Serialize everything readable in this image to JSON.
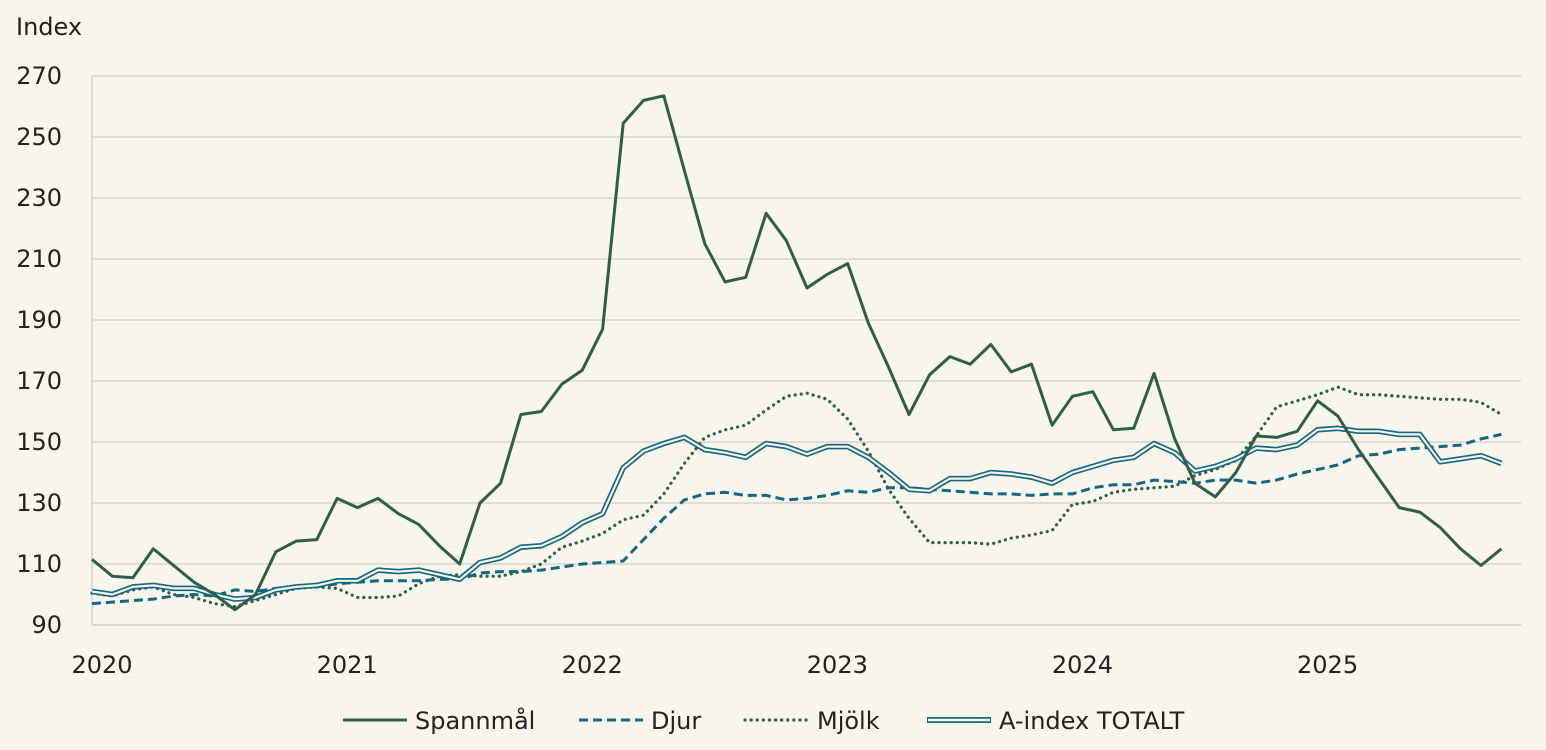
{
  "chart_data": {
    "type": "line",
    "ylabel": "Index",
    "ylim": [
      90,
      270
    ],
    "yticks": [
      90,
      110,
      130,
      150,
      170,
      190,
      210,
      230,
      250,
      270
    ],
    "xlim": [
      2020,
      2025.83
    ],
    "xticks": [
      2020,
      2021,
      2022,
      2023,
      2024,
      2025
    ],
    "xtick_labels": [
      "2020",
      "2021",
      "2022",
      "2023",
      "2024",
      "2025"
    ],
    "grid": true,
    "legend_position": "bottom",
    "x": [
      2020.0,
      2020.083,
      2020.167,
      2020.25,
      2020.333,
      2020.417,
      2020.5,
      2020.583,
      2020.667,
      2020.75,
      2020.833,
      2020.917,
      2021.0,
      2021.083,
      2021.167,
      2021.25,
      2021.333,
      2021.417,
      2021.5,
      2021.583,
      2021.667,
      2021.75,
      2021.833,
      2021.917,
      2022.0,
      2022.083,
      2022.167,
      2022.25,
      2022.333,
      2022.417,
      2022.5,
      2022.583,
      2022.667,
      2022.75,
      2022.833,
      2022.917,
      2023.0,
      2023.083,
      2023.167,
      2023.25,
      2023.333,
      2023.417,
      2023.5,
      2023.583,
      2023.667,
      2023.75,
      2023.833,
      2023.917,
      2024.0,
      2024.083,
      2024.167,
      2024.25,
      2024.333,
      2024.417,
      2024.5,
      2024.583,
      2024.667,
      2024.75,
      2024.833,
      2024.917,
      2025.0,
      2025.083,
      2025.167,
      2025.25,
      2025.333,
      2025.417,
      2025.5,
      2025.583,
      2025.667,
      2025.75
    ],
    "series": [
      {
        "name": "Spannmål",
        "color": "#2e5e4a",
        "style": "solid",
        "values": [
          111.5,
          106,
          105.5,
          115,
          109.5,
          104,
          100,
          95,
          100,
          114,
          117.5,
          118,
          131.5,
          128.5,
          131.5,
          126.5,
          123,
          116,
          110,
          130,
          136.5,
          159,
          160,
          169,
          173.5,
          187,
          254.5,
          262,
          263.5,
          239,
          215,
          202.5,
          204,
          225,
          216,
          200.5,
          205,
          208.5,
          189,
          174.5,
          159,
          172,
          178,
          175.5,
          182,
          173,
          175.5,
          155.5,
          165,
          166.5,
          154,
          154.5,
          172.5,
          151,
          136.5,
          132,
          140,
          152,
          151.5,
          153.5,
          163.5,
          158.5,
          147.5,
          138,
          128.5,
          127,
          122,
          115,
          109.5,
          115
        ]
      },
      {
        "name": "Djur",
        "color": "#126680",
        "style": "dashed",
        "values": [
          97,
          97.5,
          98,
          98.5,
          99.5,
          100,
          99.5,
          101.5,
          101,
          102,
          102.5,
          102.5,
          103.5,
          104,
          104.5,
          104.5,
          104.5,
          105,
          105,
          107,
          107.5,
          107.5,
          108,
          109,
          110,
          110.5,
          111,
          118,
          125,
          131,
          133,
          133.5,
          132.5,
          132.5,
          131,
          131.5,
          132.5,
          134,
          133.5,
          135,
          135,
          134.5,
          134,
          133.5,
          133,
          133,
          132.5,
          133,
          133,
          135,
          136,
          136,
          137.5,
          137,
          136.5,
          137.5,
          137.5,
          136.5,
          137.5,
          139.5,
          141,
          142.5,
          145.5,
          146,
          147.5,
          148,
          148.5,
          149,
          151,
          152.5
        ]
      },
      {
        "name": "Mjölk",
        "color": "#2e5e4a",
        "style": "dotted",
        "values": [
          100.5,
          99.5,
          101.5,
          102.5,
          100,
          99,
          97,
          96,
          98,
          100,
          102,
          102.5,
          102,
          99,
          99,
          99.5,
          103.5,
          106,
          106.5,
          106,
          106,
          107.5,
          110,
          115.5,
          117.5,
          120,
          124.5,
          126,
          133,
          143,
          151.5,
          154,
          155.5,
          160.5,
          165,
          166,
          164,
          157.5,
          147,
          134.5,
          125,
          117,
          117,
          117,
          116.5,
          118.5,
          119.5,
          121,
          129.5,
          130.5,
          133.5,
          134.5,
          135,
          135.5,
          139,
          141,
          144,
          152,
          161.5,
          163.5,
          165.5,
          168,
          165.5,
          165.5,
          165,
          164.5,
          164,
          164,
          163,
          159
        ]
      },
      {
        "name": "A-index TOTALT",
        "color": "#126680",
        "style": "double",
        "values": [
          101,
          100,
          102.5,
          103,
          102,
          102,
          100,
          98.5,
          99,
          101.5,
          102.5,
          103,
          104.5,
          104.5,
          108,
          107.5,
          108,
          106.5,
          105,
          110.5,
          112,
          115.5,
          116,
          119,
          123.5,
          126.5,
          141.5,
          147,
          149.5,
          151.5,
          147.5,
          146.5,
          145,
          149.5,
          148.5,
          146,
          148.5,
          148.5,
          145,
          140,
          134.5,
          134,
          138,
          138,
          140,
          139.5,
          138.5,
          136.5,
          140,
          142,
          144,
          145,
          149.5,
          146.5,
          140.5,
          142,
          144.5,
          148,
          147.5,
          149,
          154,
          154.5,
          153.5,
          153.5,
          152.5,
          152.5,
          143.5,
          144.5,
          145.5,
          143
        ]
      }
    ]
  }
}
